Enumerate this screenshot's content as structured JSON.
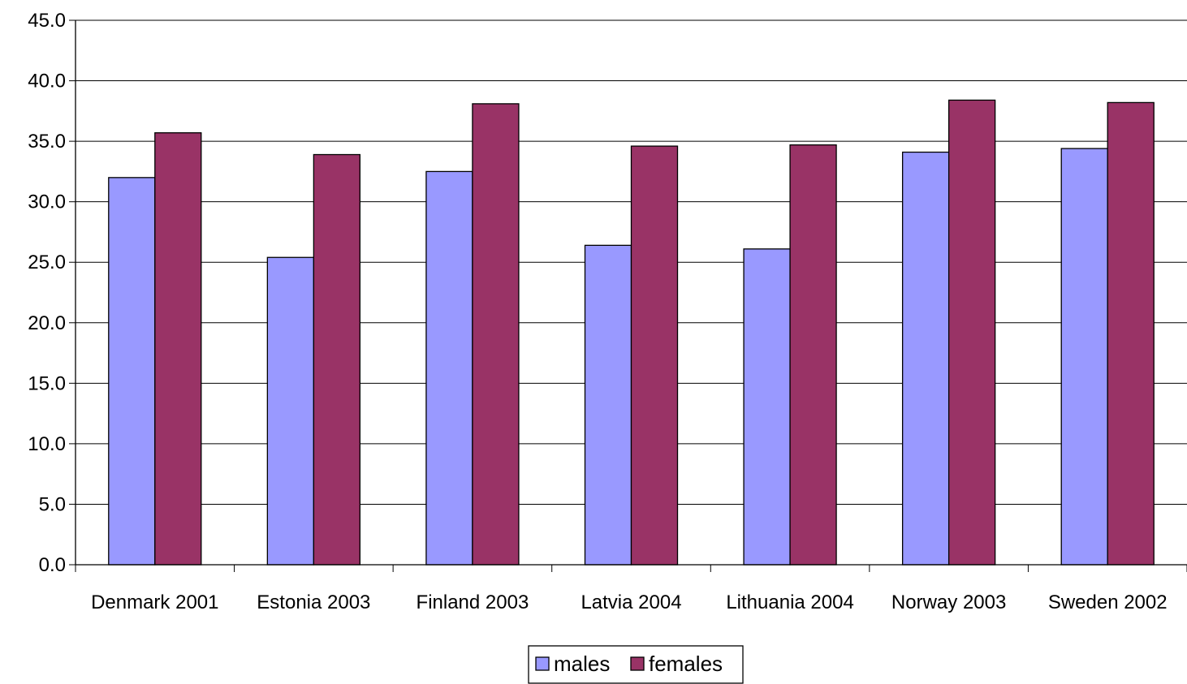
{
  "chart_data": {
    "type": "bar",
    "title": "",
    "xlabel": "",
    "ylabel": "",
    "categories": [
      "Denmark 2001",
      "Estonia 2003",
      "Finland 2003",
      "Latvia 2004",
      "Lithuania 2004",
      "Norway 2003",
      "Sweden 2002"
    ],
    "series": [
      {
        "name": "males",
        "color": "#9999ff",
        "values": [
          32.0,
          25.4,
          32.5,
          26.4,
          26.1,
          34.1,
          34.4
        ]
      },
      {
        "name": "females",
        "color": "#993366",
        "values": [
          35.7,
          33.9,
          38.1,
          34.6,
          34.7,
          38.4,
          38.2
        ]
      }
    ],
    "ylim": [
      0,
      45
    ],
    "yticks": [
      "0.0",
      "5.0",
      "10.0",
      "15.0",
      "20.0",
      "25.0",
      "30.0",
      "35.0",
      "40.0",
      "45.0"
    ],
    "ytick_step": 5,
    "grid": true,
    "legend": {
      "position": "bottom"
    }
  }
}
